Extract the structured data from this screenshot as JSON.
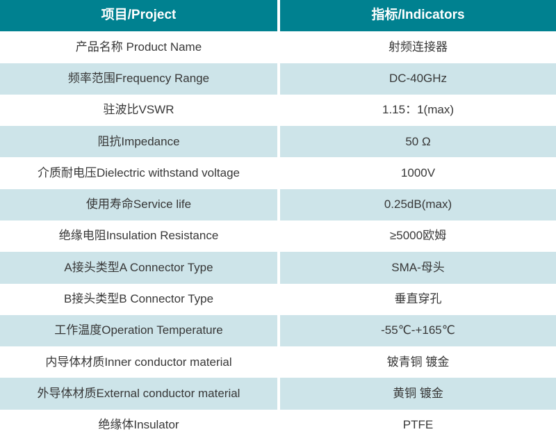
{
  "table": {
    "columns": [
      {
        "label": "项目/Project"
      },
      {
        "label": "指标/Indicators"
      }
    ],
    "rows": [
      {
        "project": "产品名称 Product Name",
        "indicator": "射频连接器"
      },
      {
        "project": "频率范围Frequency Range",
        "indicator": "DC-40GHz"
      },
      {
        "project": "驻波比VSWR",
        "indicator": "1.15：1(max)"
      },
      {
        "project": "阻抗Impedance",
        "indicator": "50 Ω"
      },
      {
        "project": "介质耐电压Dielectric withstand voltage",
        "indicator": "1000V"
      },
      {
        "project": "使用寿命Service life",
        "indicator": "0.25dB(max)"
      },
      {
        "project": "绝缘电阻Insulation Resistance",
        "indicator": "≥5000欧姆"
      },
      {
        "project": "A接头类型A Connector Type",
        "indicator": "SMA-母头"
      },
      {
        "project": "B接头类型B Connector Type",
        "indicator": "垂直穿孔"
      },
      {
        "project": "工作温度Operation Temperature",
        "indicator": "-55℃-+165℃"
      },
      {
        "project": "内导体材质Inner conductor material",
        "indicator": "铍青铜 镀金"
      },
      {
        "project": "外导体材质External conductor material",
        "indicator": "黄铜 镀金"
      },
      {
        "project": "绝缘体Insulator",
        "indicator": "PTFE"
      }
    ]
  },
  "colors": {
    "header_bg": "#008190",
    "alt_row_bg": "#CDE4E9",
    "header_text": "#FFFFFF",
    "body_text": "#373737",
    "divider": "#FFFFFF"
  }
}
